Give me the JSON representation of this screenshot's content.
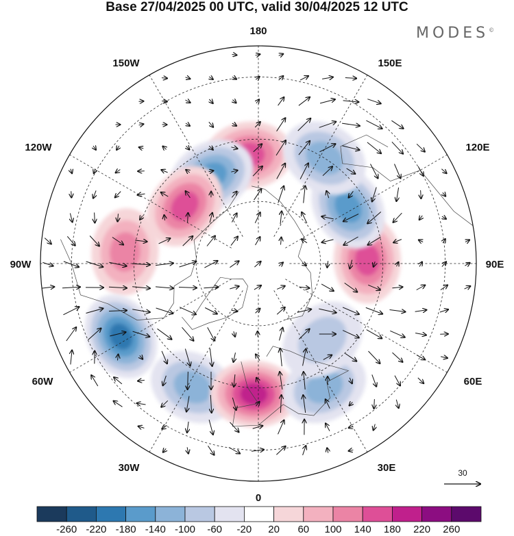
{
  "title": "Base 27/04/2025 00 UTC, valid 30/04/2025 12 UTC",
  "brand": "MODES",
  "brand_mark": "©",
  "longitude_labels": {
    "top": "180",
    "bottom": "0",
    "left": "90W",
    "right": "90E",
    "upper_left_outer": "150W",
    "upper_left_inner": "120W",
    "upper_right_outer": "150E",
    "upper_right_inner": "120E",
    "lower_left_outer": "30W",
    "lower_left_inner": "60W",
    "lower_right_outer": "30E",
    "lower_right_inner": "60E"
  },
  "reference_vector": {
    "label": "30"
  },
  "colorbar": {
    "ticks": [
      "-260",
      "-220",
      "-180",
      "-140",
      "-100",
      "-60",
      "-20",
      "20",
      "60",
      "100",
      "140",
      "180",
      "220",
      "260"
    ],
    "colors": [
      "#1b3a5c",
      "#1f5a8a",
      "#2d78b0",
      "#5a9bcb",
      "#8cb3d8",
      "#b9c8e2",
      "#e3e3f0",
      "#ffffff",
      "#f6d6d9",
      "#f3b1bf",
      "#eb84a5",
      "#de4f97",
      "#c0208c",
      "#8c0d81",
      "#5c0a6c"
    ]
  },
  "anomaly_centers": [
    {
      "name": "ne-pacific-high",
      "lon": -175,
      "lat": 55,
      "value": 160
    },
    {
      "name": "alaska-low",
      "lon": -152,
      "lat": 58,
      "value": -170
    },
    {
      "name": "canada-high",
      "lon": -128,
      "lat": 60,
      "value": 150
    },
    {
      "name": "hudson-high",
      "lon": -95,
      "lat": 47,
      "value": 130
    },
    {
      "name": "atlantic-low",
      "lon": -62,
      "lat": 40,
      "value": -200
    },
    {
      "name": "n-atlantic-low",
      "lon": -28,
      "lat": 45,
      "value": -120
    },
    {
      "name": "europe-high",
      "lon": -2,
      "lat": 48,
      "value": 200
    },
    {
      "name": "e-europe-low",
      "lon": 28,
      "lat": 45,
      "value": -130
    },
    {
      "name": "w-siberia-low",
      "lon": 40,
      "lat": 58,
      "value": -90
    },
    {
      "name": "siberia-high",
      "lon": 92,
      "lat": 55,
      "value": 150
    },
    {
      "name": "e-siberia-low",
      "lon": 122,
      "lat": 56,
      "value": -170
    },
    {
      "name": "kamchatka-low",
      "lon": 148,
      "lat": 50,
      "value": -120
    }
  ]
}
